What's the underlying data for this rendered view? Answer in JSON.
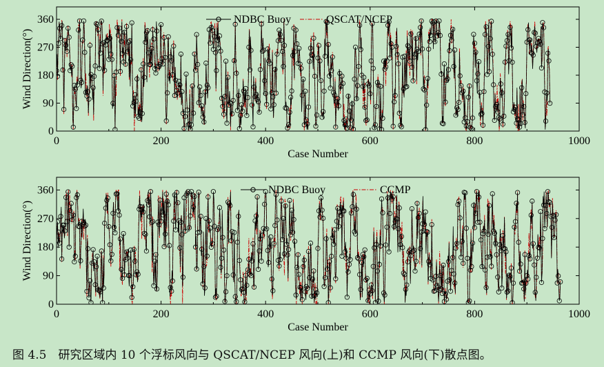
{
  "caption": "图 4.5　研究区域内 10 个浮标风向与 QSCAT/NCEP 风向(上)和 CCMP 风向(下)散点图。",
  "colors": {
    "background": "#c8e6c8",
    "series1": "#000000",
    "series2": "#cc0000",
    "axis": "#000000"
  },
  "chart_data": [
    {
      "type": "line",
      "title": "",
      "xlabel": "Case Number",
      "ylabel": "Wind Direction(°)",
      "xlim": [
        0,
        1000
      ],
      "ylim": [
        0,
        400
      ],
      "x_ticks": [
        0,
        200,
        400,
        600,
        800,
        1000
      ],
      "y_ticks": [
        0,
        90,
        180,
        270,
        360
      ],
      "legend_position": "top-center",
      "series": [
        {
          "name": "NDBC Buoy",
          "style": "solid line with circle markers",
          "color": "#000000",
          "n_points": 945,
          "min": 0,
          "max": 360
        },
        {
          "name": "QSCAT/NCEP",
          "style": "dash-dot line",
          "color": "#cc0000",
          "n_points": 945,
          "min": 0,
          "max": 360
        }
      ]
    },
    {
      "type": "line",
      "title": "",
      "xlabel": "Case Number",
      "ylabel": "Wind Direction(°)",
      "xlim": [
        0,
        1000
      ],
      "ylim": [
        0,
        400
      ],
      "x_ticks": [
        0,
        200,
        400,
        600,
        800,
        1000
      ],
      "y_ticks": [
        0,
        90,
        180,
        270,
        360
      ],
      "legend_position": "top-center",
      "series": [
        {
          "name": "NDBC Buoy",
          "style": "solid line with circle markers",
          "color": "#000000",
          "n_points": 965,
          "min": 0,
          "max": 360
        },
        {
          "name": "CCMP",
          "style": "dash-dot line",
          "color": "#cc0000",
          "n_points": 965,
          "min": 0,
          "max": 360
        }
      ]
    }
  ]
}
